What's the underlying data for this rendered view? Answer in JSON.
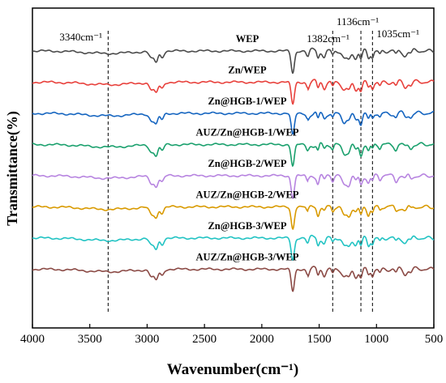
{
  "chart_data": {
    "type": "line",
    "title": "",
    "xlabel": "Wavenumber(cm⁻¹)",
    "ylabel": "Transmittance(%)",
    "xlim": [
      4000,
      500
    ],
    "x_ticks": [
      4000,
      3500,
      3000,
      2500,
      2000,
      1500,
      1000,
      500
    ],
    "x_reversed": true,
    "grid": false,
    "legend": "none",
    "reference_lines": [
      {
        "x": 3340,
        "label": "3340cm⁻¹"
      },
      {
        "x": 1382,
        "label": "1382cm⁻¹"
      },
      {
        "x": 1136,
        "label": "1136cm⁻¹"
      },
      {
        "x": 1035,
        "label": "1035cm⁻¹"
      }
    ],
    "series": [
      {
        "name": "WEP",
        "color": "#4a4a4a",
        "baseline": 0.0
      },
      {
        "name": "Zn/WEP",
        "color": "#e8413c",
        "baseline": 1.0
      },
      {
        "name": "Zn@HGB-1/WEP",
        "color": "#1565c0",
        "baseline": 2.0
      },
      {
        "name": "AUZ/Zn@HGB-1/WEP",
        "color": "#1aa06d",
        "baseline": 3.0
      },
      {
        "name": "Zn@HGB-2/WEP",
        "color": "#b784e0",
        "baseline": 4.0
      },
      {
        "name": "AUZ/Zn@HGB-2/WEP",
        "color": "#d99a00",
        "baseline": 5.0
      },
      {
        "name": "Zn@HGB-3/WEP",
        "color": "#22c3c3",
        "baseline": 6.0
      },
      {
        "name": "AUZ/Zn@HGB-3/WEP",
        "color": "#8b4a45",
        "baseline": 7.0
      }
    ],
    "absorption_bands": [
      {
        "center": 3340,
        "width": 200,
        "depth": 0.1
      },
      {
        "center": 2960,
        "width": 20,
        "depth": 0.3
      },
      {
        "center": 2920,
        "width": 15,
        "depth": 0.4
      },
      {
        "center": 2870,
        "width": 15,
        "depth": 0.25
      },
      {
        "center": 1730,
        "width": 14,
        "depth": 0.9
      },
      {
        "center": 1600,
        "width": 12,
        "depth": 0.22
      },
      {
        "center": 1510,
        "width": 10,
        "depth": 0.28
      },
      {
        "center": 1455,
        "width": 12,
        "depth": 0.2
      },
      {
        "center": 1382,
        "width": 10,
        "depth": 0.18
      },
      {
        "center": 1280,
        "width": 20,
        "depth": 0.35
      },
      {
        "center": 1240,
        "width": 15,
        "depth": 0.3
      },
      {
        "center": 1180,
        "width": 15,
        "depth": 0.25
      },
      {
        "center": 1136,
        "width": 12,
        "depth": 0.38
      },
      {
        "center": 1070,
        "width": 12,
        "depth": 0.28
      },
      {
        "center": 1035,
        "width": 10,
        "depth": 0.22
      },
      {
        "center": 970,
        "width": 10,
        "depth": 0.15
      },
      {
        "center": 830,
        "width": 12,
        "depth": 0.18
      },
      {
        "center": 750,
        "width": 15,
        "depth": 0.15
      },
      {
        "center": 700,
        "width": 12,
        "depth": 0.12
      }
    ]
  }
}
